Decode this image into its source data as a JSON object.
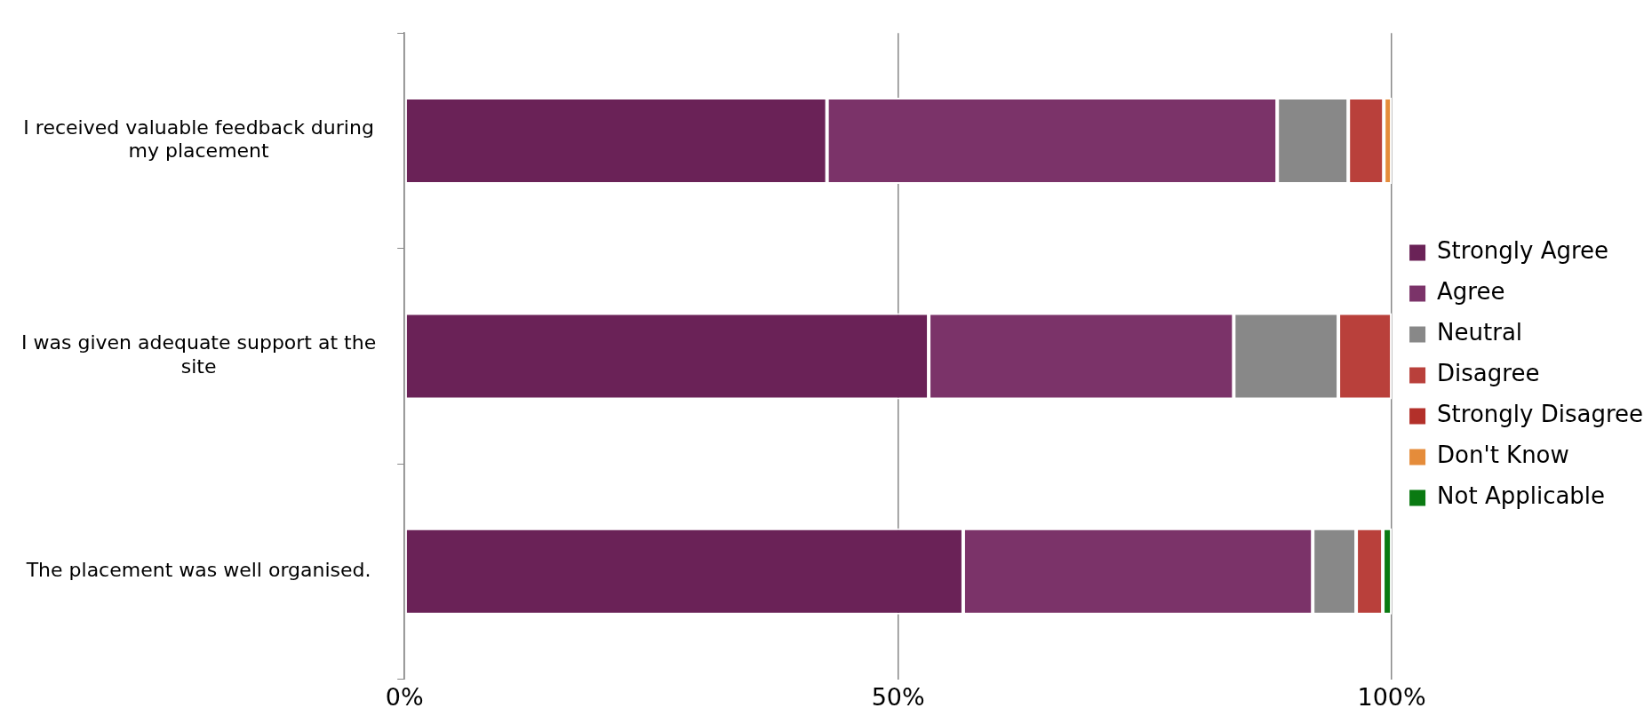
{
  "chart_data": {
    "type": "bar",
    "orientation": "horizontal",
    "stacked": true,
    "categories": [
      "I received valuable feedback during my placement",
      "I was given adequate support at the site",
      "The placement was well organised."
    ],
    "series": [
      {
        "name": "Strongly Agree",
        "color": "#6a2257",
        "values": [
          42.8,
          53.1,
          56.6
        ]
      },
      {
        "name": "Agree",
        "color": "#7b3369",
        "values": [
          45.6,
          30.9,
          35.4
        ]
      },
      {
        "name": "Neutral",
        "color": "#888888",
        "values": [
          7.2,
          10.6,
          4.4
        ]
      },
      {
        "name": "Disagree",
        "color": "#b9403b",
        "values": [
          3.6,
          5.4,
          2.7
        ]
      },
      {
        "name": "Strongly Disagree",
        "color": "#b3302a",
        "values": [
          null,
          null,
          null
        ]
      },
      {
        "name": "Don't Know",
        "color": "#e58c3a",
        "values": [
          0.8,
          null,
          null
        ]
      },
      {
        "name": "Not Applicable",
        "color": "#0a7a12",
        "values": [
          null,
          null,
          0.9
        ]
      }
    ],
    "xlim": [
      0,
      100
    ],
    "xticks": [
      {
        "value": 0,
        "label": "0%"
      },
      {
        "value": 50,
        "label": "50%"
      },
      {
        "value": 100,
        "label": "100%"
      }
    ],
    "grid": "x",
    "legend": "right"
  }
}
